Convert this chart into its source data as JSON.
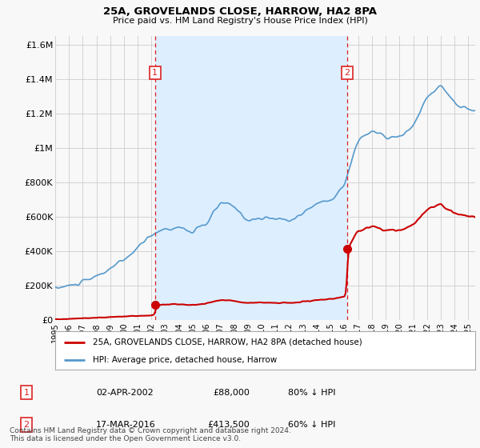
{
  "title": "25A, GROVELANDS CLOSE, HARROW, HA2 8PA",
  "subtitle": "Price paid vs. HM Land Registry's House Price Index (HPI)",
  "property_label": "25A, GROVELANDS CLOSE, HARROW, HA2 8PA (detached house)",
  "hpi_label": "HPI: Average price, detached house, Harrow",
  "transaction1_date": "02-APR-2002",
  "transaction1_price": "£88,000",
  "transaction1_note": "80% ↓ HPI",
  "transaction2_date": "17-MAR-2016",
  "transaction2_price": "£413,500",
  "transaction2_note": "60% ↓ HPI",
  "footer": "Contains HM Land Registry data © Crown copyright and database right 2024.\nThis data is licensed under the Open Government Licence v3.0.",
  "ylim": [
    0,
    1650000
  ],
  "yticks": [
    0,
    200000,
    400000,
    600000,
    800000,
    1000000,
    1200000,
    1400000,
    1600000
  ],
  "ytick_labels": [
    "£0",
    "£200K",
    "£400K",
    "£600K",
    "£800K",
    "£1M",
    "£1.2M",
    "£1.4M",
    "£1.6M"
  ],
  "red_line_color": "#cc0000",
  "blue_line_color": "#5599cc",
  "shade_color": "#ddeeff",
  "vline_color": "#dd2222",
  "background_color": "#f8f8f8",
  "grid_color": "#cccccc",
  "transaction1_x": 2002.25,
  "transaction2_x": 2016.21,
  "transaction1_y": 88000,
  "transaction2_y": 413500,
  "xmin": 1995.0,
  "xmax": 2025.5
}
